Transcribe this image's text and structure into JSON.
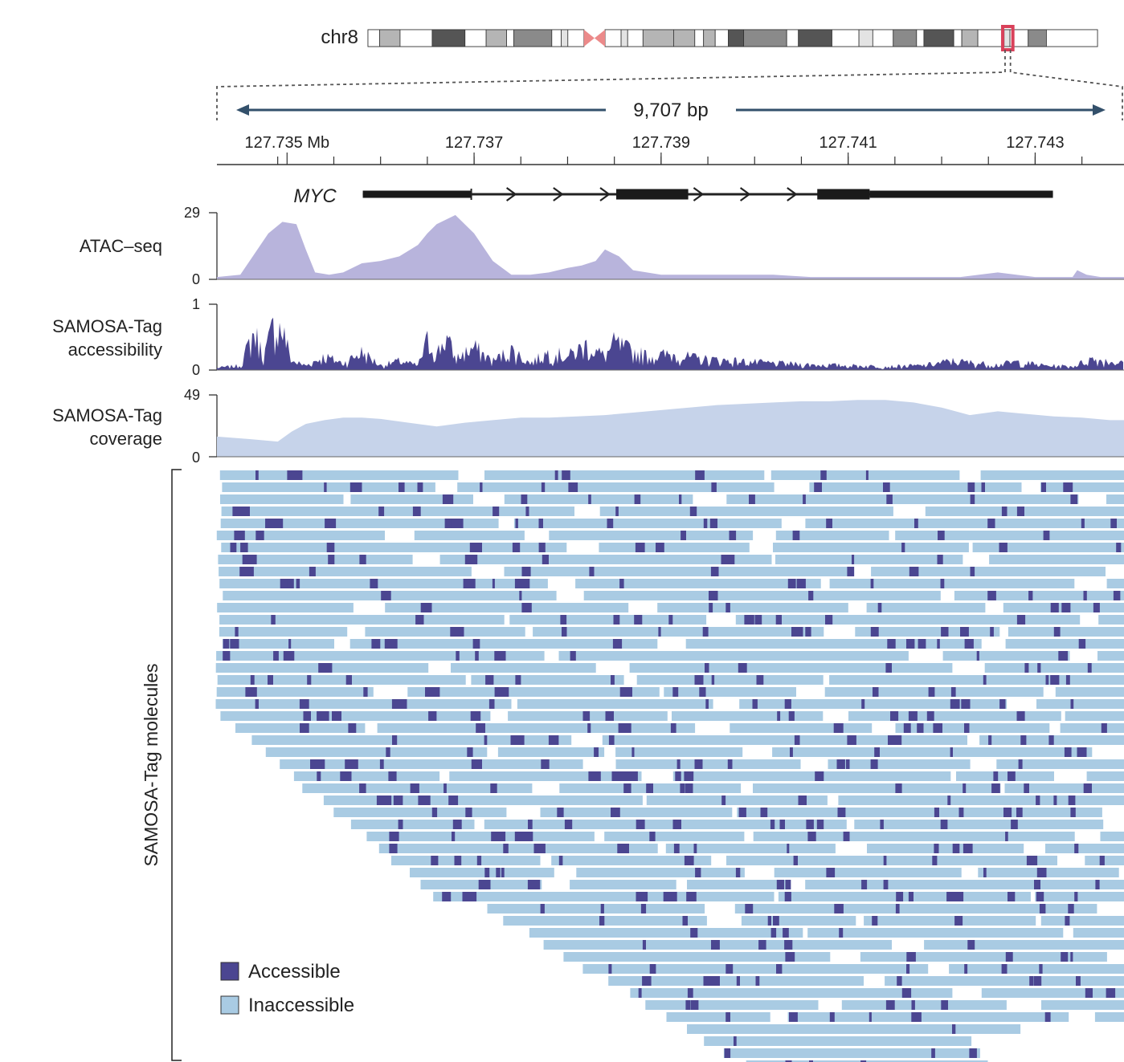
{
  "chromosome": {
    "label": "chr8"
  },
  "region": {
    "span_label": "9,707 bp"
  },
  "colors": {
    "accessible": "#4b4691",
    "inaccessible": "#a9cbe3",
    "atac_fill": "#b8b4dc",
    "coverage_fill": "#c6d3ea",
    "arrow": "#33506b",
    "highlight": "#d9415a",
    "centromere": "#ec8a8a"
  },
  "chart_data": [
    {
      "type": "ideogram",
      "label": "chr8",
      "bands": [
        {
          "start": 0.0,
          "end": 0.016,
          "stain": "white"
        },
        {
          "start": 0.016,
          "end": 0.044,
          "stain": "light"
        },
        {
          "start": 0.044,
          "end": 0.088,
          "stain": "white"
        },
        {
          "start": 0.088,
          "end": 0.133,
          "stain": "dark"
        },
        {
          "start": 0.133,
          "end": 0.162,
          "stain": "white"
        },
        {
          "start": 0.162,
          "end": 0.19,
          "stain": "light"
        },
        {
          "start": 0.19,
          "end": 0.2,
          "stain": "white"
        },
        {
          "start": 0.2,
          "end": 0.252,
          "stain": "mid"
        },
        {
          "start": 0.252,
          "end": 0.265,
          "stain": "white"
        },
        {
          "start": 0.265,
          "end": 0.274,
          "stain": "pale"
        },
        {
          "start": 0.274,
          "end": 0.296,
          "stain": "white"
        },
        {
          "start": 0.325,
          "end": 0.347,
          "stain": "white"
        },
        {
          "start": 0.347,
          "end": 0.356,
          "stain": "pale"
        },
        {
          "start": 0.356,
          "end": 0.377,
          "stain": "white"
        },
        {
          "start": 0.377,
          "end": 0.419,
          "stain": "light"
        },
        {
          "start": 0.419,
          "end": 0.448,
          "stain": "light"
        },
        {
          "start": 0.448,
          "end": 0.46,
          "stain": "white"
        },
        {
          "start": 0.46,
          "end": 0.476,
          "stain": "light"
        },
        {
          "start": 0.476,
          "end": 0.494,
          "stain": "white"
        },
        {
          "start": 0.494,
          "end": 0.515,
          "stain": "dark"
        },
        {
          "start": 0.515,
          "end": 0.574,
          "stain": "mid"
        },
        {
          "start": 0.574,
          "end": 0.59,
          "stain": "white"
        },
        {
          "start": 0.59,
          "end": 0.636,
          "stain": "dark"
        },
        {
          "start": 0.636,
          "end": 0.673,
          "stain": "white"
        },
        {
          "start": 0.673,
          "end": 0.692,
          "stain": "pale"
        },
        {
          "start": 0.692,
          "end": 0.72,
          "stain": "white"
        },
        {
          "start": 0.72,
          "end": 0.752,
          "stain": "mid"
        },
        {
          "start": 0.752,
          "end": 0.762,
          "stain": "white"
        },
        {
          "start": 0.762,
          "end": 0.803,
          "stain": "dark"
        },
        {
          "start": 0.803,
          "end": 0.814,
          "stain": "white"
        },
        {
          "start": 0.814,
          "end": 0.836,
          "stain": "light"
        },
        {
          "start": 0.836,
          "end": 0.872,
          "stain": "white"
        },
        {
          "start": 0.872,
          "end": 0.88,
          "stain": "pale"
        },
        {
          "start": 0.88,
          "end": 0.905,
          "stain": "white"
        },
        {
          "start": 0.905,
          "end": 0.93,
          "stain": "mid"
        },
        {
          "start": 0.93,
          "end": 1.0,
          "stain": "white"
        }
      ],
      "centromere": [
        0.296,
        0.325
      ],
      "highlight": [
        0.87,
        0.884
      ]
    },
    {
      "type": "axis",
      "xlim": [
        127.73425,
        127.74395
      ],
      "tick_labels": [
        {
          "x": 127.735,
          "label": "127.735 Mb"
        },
        {
          "x": 127.737,
          "label": "127.737"
        },
        {
          "x": 127.739,
          "label": "127.739"
        },
        {
          "x": 127.741,
          "label": "127.741"
        },
        {
          "x": 127.743,
          "label": "127.743"
        }
      ],
      "minor_ticks": [
        127.7349,
        127.7355,
        127.736,
        127.7365,
        127.737,
        127.7375,
        127.738,
        127.7385,
        127.739,
        127.7395,
        127.74,
        127.7405,
        127.741,
        127.7415,
        127.742,
        127.7425,
        127.743,
        127.7435
      ]
    },
    {
      "type": "gene",
      "name": "MYC",
      "exons": [
        [
          127.73581,
          127.73697
        ],
        [
          127.73852,
          127.73929
        ],
        [
          127.74067,
          127.74123
        ]
      ],
      "intron_end": 127.74319,
      "arrows": [
        127.7374,
        127.7379,
        127.7384,
        127.7394,
        127.7399,
        127.7404
      ]
    },
    {
      "type": "area",
      "name": "ATAC–seq",
      "ylim": [
        0,
        29
      ],
      "x": [
        127.73425,
        127.7345,
        127.7348,
        127.73495,
        127.7351,
        127.7352,
        127.7353,
        127.73545,
        127.7356,
        127.7358,
        127.736,
        127.7362,
        127.7364,
        127.7365,
        127.7366,
        127.7368,
        127.737,
        127.7372,
        127.7374,
        127.7376,
        127.7378,
        127.738,
        127.73815,
        127.7383,
        127.7384,
        127.73855,
        127.7387,
        127.739,
        127.7394,
        127.7398,
        127.7402,
        127.7406,
        127.741,
        127.7414,
        127.7418,
        127.7422,
        127.7426,
        127.743,
        127.7434,
        127.74345,
        127.74355,
        127.7437,
        127.74395
      ],
      "y": [
        1,
        2,
        20,
        25,
        24,
        13,
        3,
        2,
        3,
        7,
        8,
        10,
        15,
        20,
        24,
        28,
        20,
        8,
        2,
        2,
        3,
        5,
        6,
        8,
        13,
        10,
        4,
        2,
        2,
        2,
        2,
        1,
        1,
        1,
        1,
        1,
        3,
        1,
        1,
        4,
        2,
        1,
        1
      ]
    },
    {
      "type": "area",
      "name": "SAMOSA-Tag accessibility",
      "ylim": [
        0,
        1
      ],
      "x": [
        127.73425,
        127.7345,
        127.73465,
        127.73475,
        127.73485,
        127.73495,
        127.73505,
        127.7352,
        127.7354,
        127.7356,
        127.7358,
        127.736,
        127.7362,
        127.7364,
        127.7365,
        127.7366,
        127.7367,
        127.7368,
        127.737,
        127.7372,
        127.7374,
        127.7376,
        127.7378,
        127.738,
        127.7382,
        127.7384,
        127.7385,
        127.7387,
        127.7389,
        127.7391,
        127.7394,
        127.7398,
        127.7402,
        127.7406,
        127.741,
        127.7414,
        127.7418,
        127.7421,
        127.7424,
        127.7426,
        127.7428,
        127.7431,
        127.7434,
        127.7436,
        127.74395
      ],
      "y": [
        0.05,
        0.1,
        0.85,
        0.3,
        0.95,
        0.9,
        0.2,
        0.1,
        0.3,
        0.15,
        0.4,
        0.1,
        0.2,
        0.1,
        0.65,
        0.35,
        0.75,
        0.25,
        0.5,
        0.2,
        0.45,
        0.15,
        0.4,
        0.3,
        0.55,
        0.3,
        0.6,
        0.4,
        0.3,
        0.35,
        0.25,
        0.2,
        0.15,
        0.12,
        0.1,
        0.08,
        0.1,
        0.2,
        0.15,
        0.12,
        0.18,
        0.1,
        0.08,
        0.25,
        0.15
      ]
    },
    {
      "type": "area",
      "name": "SAMOSA-Tag coverage",
      "ylim": [
        0,
        49
      ],
      "x": [
        127.73425,
        127.7346,
        127.7349,
        127.73505,
        127.7352,
        127.7354,
        127.7356,
        127.7358,
        127.736,
        127.7363,
        127.7366,
        127.7369,
        127.7372,
        127.7375,
        127.7378,
        127.7381,
        127.7384,
        127.7387,
        127.739,
        127.7393,
        127.7396,
        127.7399,
        127.7402,
        127.7405,
        127.7408,
        127.7411,
        127.7414,
        127.7417,
        127.742,
        127.7423,
        127.7426,
        127.7429,
        127.7432,
        127.7435,
        127.7438,
        127.74395
      ],
      "y": [
        16,
        14,
        12,
        20,
        26,
        29,
        31,
        31,
        30,
        27,
        24,
        27,
        29,
        31,
        31,
        32,
        33,
        35,
        37,
        39,
        41,
        42,
        43,
        44,
        44,
        45,
        45,
        43,
        39,
        33,
        36,
        34,
        32,
        31,
        29,
        29
      ]
    },
    {
      "type": "molecules",
      "name": "SAMOSA-Tag molecules",
      "row_count": 50,
      "legend": [
        "Accessible",
        "Inaccessible"
      ]
    }
  ],
  "tracks": {
    "gene_name": "MYC",
    "atac": {
      "label": "ATAC–seq",
      "ymax": "29",
      "ymin": "0"
    },
    "accessibility": {
      "label_line1": "SAMOSA-Tag",
      "label_line2": "accessibility",
      "ymax": "1",
      "ymin": "0"
    },
    "coverage": {
      "label_line1": "SAMOSA-Tag",
      "label_line2": "coverage",
      "ymax": "49",
      "ymin": "0"
    },
    "molecules": {
      "label": "SAMOSA-Tag molecules"
    }
  },
  "legend": {
    "accessible": "Accessible",
    "inaccessible": "Inaccessible"
  }
}
